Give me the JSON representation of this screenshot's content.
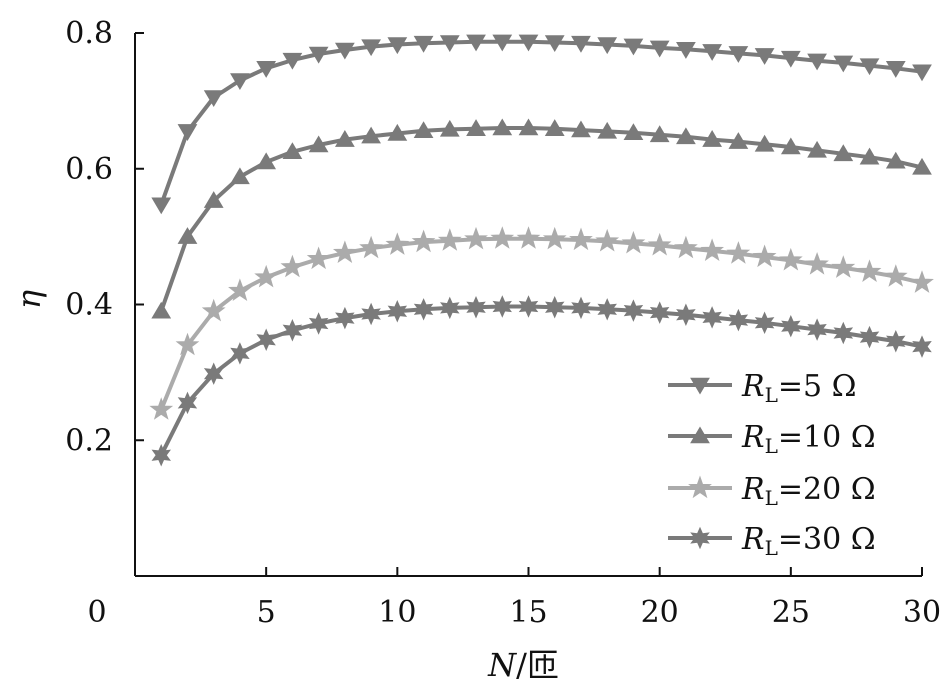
{
  "chart_data": {
    "type": "line",
    "title": "",
    "xlabel_main": "N",
    "xlabel_unit": "/匝",
    "ylabel": "η",
    "xlim": [
      0,
      30
    ],
    "ylim": [
      0,
      0.8
    ],
    "x_ticks": [
      0,
      5,
      10,
      15,
      20,
      25,
      30
    ],
    "x_tick_labels": [
      "0",
      "5",
      "10",
      "15",
      "20",
      "25",
      "30"
    ],
    "y_ticks": [
      0.2,
      0.4,
      0.6,
      0.8
    ],
    "y_tick_labels": [
      "0.2",
      "0.4",
      "0.6",
      "0.8"
    ],
    "grid": false,
    "legend_position": "right",
    "x": [
      1,
      2,
      3,
      4,
      5,
      6,
      7,
      8,
      9,
      10,
      11,
      12,
      13,
      14,
      15,
      16,
      17,
      18,
      19,
      20,
      21,
      22,
      23,
      24,
      25,
      26,
      27,
      28,
      29,
      30
    ],
    "series": [
      {
        "legend_prefix": "R",
        "legend_sub": "L",
        "legend_suffix": "=5  Ω",
        "marker": "triangle-down",
        "color": "#7a7a7a",
        "values": [
          0.547,
          0.655,
          0.705,
          0.73,
          0.748,
          0.76,
          0.769,
          0.775,
          0.78,
          0.783,
          0.785,
          0.786,
          0.787,
          0.787,
          0.787,
          0.786,
          0.785,
          0.783,
          0.781,
          0.778,
          0.776,
          0.773,
          0.77,
          0.767,
          0.763,
          0.759,
          0.756,
          0.752,
          0.748,
          0.743
        ]
      },
      {
        "legend_prefix": "R",
        "legend_sub": "L",
        "legend_suffix": "=10  Ω",
        "marker": "triangle-up",
        "color": "#7a7a7a",
        "values": [
          0.39,
          0.5,
          0.553,
          0.588,
          0.61,
          0.625,
          0.635,
          0.643,
          0.648,
          0.652,
          0.656,
          0.658,
          0.659,
          0.66,
          0.66,
          0.659,
          0.657,
          0.655,
          0.653,
          0.65,
          0.647,
          0.643,
          0.64,
          0.636,
          0.632,
          0.627,
          0.622,
          0.617,
          0.611,
          0.602
        ]
      },
      {
        "legend_prefix": "R",
        "legend_sub": "L",
        "legend_suffix": "=20  Ω",
        "marker": "star",
        "color": "#ababab",
        "values": [
          0.245,
          0.34,
          0.39,
          0.42,
          0.44,
          0.455,
          0.467,
          0.476,
          0.483,
          0.488,
          0.492,
          0.494,
          0.496,
          0.497,
          0.497,
          0.496,
          0.495,
          0.493,
          0.49,
          0.487,
          0.483,
          0.479,
          0.475,
          0.47,
          0.465,
          0.459,
          0.454,
          0.448,
          0.441,
          0.432
        ]
      },
      {
        "legend_prefix": "R",
        "legend_sub": "L",
        "legend_suffix": "=30  Ω",
        "marker": "star6",
        "color": "#7a7a7a",
        "values": [
          0.178,
          0.255,
          0.298,
          0.328,
          0.348,
          0.362,
          0.372,
          0.38,
          0.386,
          0.39,
          0.393,
          0.395,
          0.396,
          0.397,
          0.397,
          0.396,
          0.395,
          0.393,
          0.391,
          0.388,
          0.385,
          0.381,
          0.377,
          0.373,
          0.368,
          0.363,
          0.358,
          0.352,
          0.346,
          0.338
        ]
      }
    ]
  }
}
